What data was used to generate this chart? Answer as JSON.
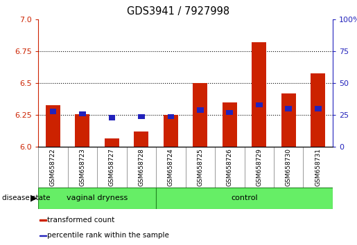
{
  "title": "GDS3941 / 7927998",
  "samples": [
    "GSM658722",
    "GSM658723",
    "GSM658727",
    "GSM658728",
    "GSM658724",
    "GSM658725",
    "GSM658726",
    "GSM658729",
    "GSM658730",
    "GSM658731"
  ],
  "red_values": [
    6.33,
    6.26,
    6.07,
    6.12,
    6.25,
    6.5,
    6.35,
    6.82,
    6.42,
    6.58
  ],
  "blue_values": [
    28,
    26,
    23,
    24,
    24,
    29,
    27,
    33,
    30,
    30
  ],
  "ylim_left": [
    6.0,
    7.0
  ],
  "ylim_right": [
    0,
    100
  ],
  "yticks_left": [
    6.0,
    6.25,
    6.5,
    6.75,
    7.0
  ],
  "yticks_right": [
    0,
    25,
    50,
    75,
    100
  ],
  "groups": [
    {
      "label": "vaginal dryness",
      "start": 0,
      "end": 4
    },
    {
      "label": "control",
      "start": 4,
      "end": 10
    }
  ],
  "disease_state_label": "disease state",
  "legend_items": [
    {
      "label": "transformed count",
      "color": "#cc2200"
    },
    {
      "label": "percentile rank within the sample",
      "color": "#2222bb"
    }
  ],
  "red_color": "#cc2200",
  "blue_color": "#2222bb",
  "grid_color": "#000000",
  "group_bg": "#66ee66",
  "xtick_bg": "#cccccc",
  "left_axis_color": "#cc2200",
  "right_axis_color": "#2222bb"
}
